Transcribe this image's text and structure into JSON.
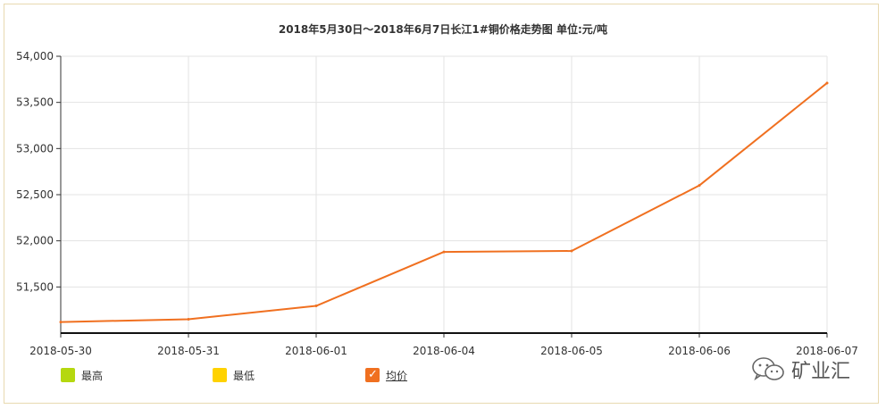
{
  "chart_data": {
    "type": "line",
    "title": "2018年5月30日～2018年6月7日长江1#铜价格走势图 单位:元/吨",
    "categories": [
      "2018-05-30",
      "2018-05-31",
      "2018-06-01",
      "2018-06-04",
      "2018-06-05",
      "2018-06-06",
      "2018-06-07"
    ],
    "ylim": [
      51000,
      54000
    ],
    "yticks": [
      51500,
      52000,
      52500,
      53000,
      53500,
      54000
    ],
    "ytick_labels": [
      "51,500",
      "52,000",
      "52,500",
      "53,000",
      "53,500",
      "54,000"
    ],
    "grid": true,
    "series": [
      {
        "name": "均价",
        "color": "#f07020",
        "values": [
          51120,
          51150,
          51295,
          51880,
          51890,
          52600,
          53710
        ]
      }
    ]
  },
  "legend": {
    "items": [
      {
        "label": "最高",
        "color": "#b5d80f",
        "checked": false
      },
      {
        "label": "最低",
        "color": "#ffd200",
        "checked": false
      },
      {
        "label": "均价",
        "color": "#f07020",
        "checked": true
      }
    ]
  },
  "watermark": {
    "text": "矿业汇",
    "icon": "wechat-icon"
  }
}
